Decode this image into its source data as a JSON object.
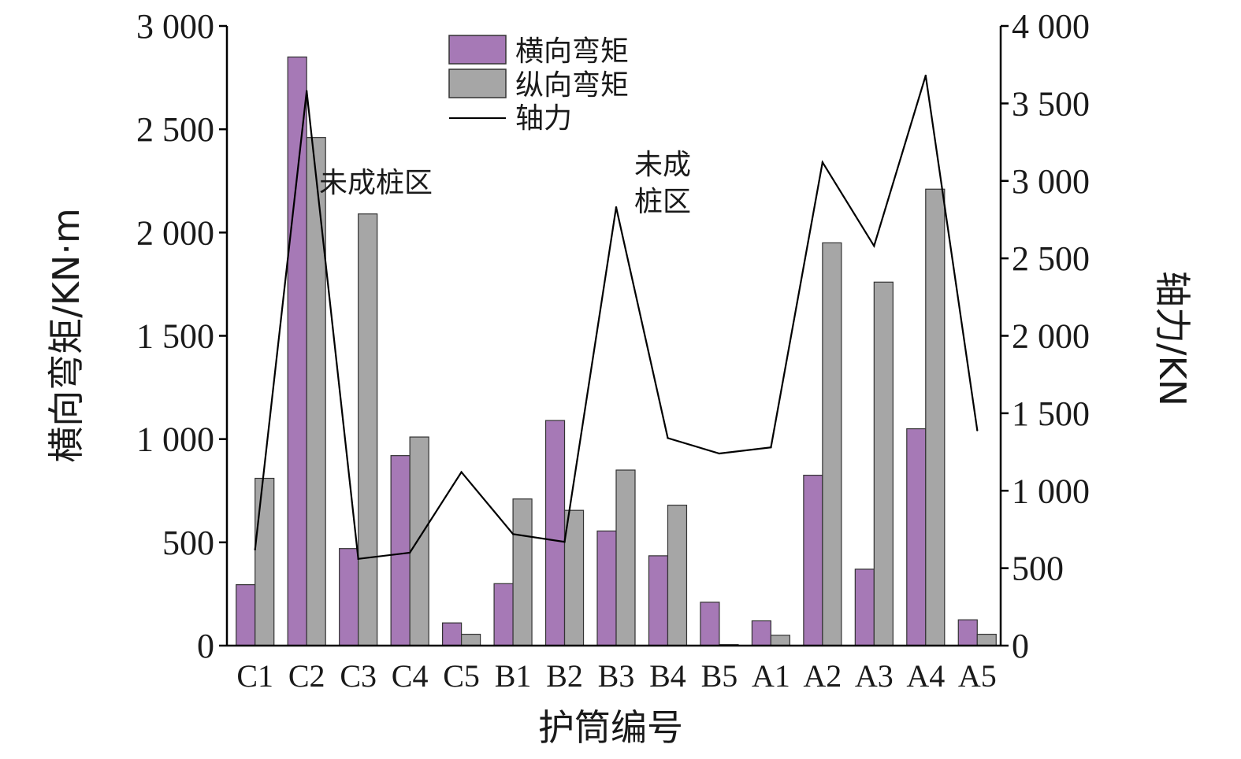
{
  "chart_data": {
    "type": "bar",
    "categories": [
      "C1",
      "C2",
      "C3",
      "C4",
      "C5",
      "B1",
      "B2",
      "B3",
      "B4",
      "B5",
      "A1",
      "A2",
      "A3",
      "A4",
      "A5"
    ],
    "series": [
      {
        "name": "横向弯矩",
        "kind": "bar",
        "axis": "left",
        "color": "#A679B6",
        "values": [
          295,
          2850,
          470,
          920,
          110,
          300,
          1090,
          555,
          435,
          210,
          120,
          825,
          370,
          1050,
          125
        ]
      },
      {
        "name": "纵向弯矩",
        "kind": "bar",
        "axis": "left",
        "color": "#A6A6A6",
        "values": [
          810,
          2460,
          2090,
          1010,
          55,
          710,
          655,
          850,
          680,
          5,
          50,
          1950,
          1760,
          2210,
          55
        ]
      },
      {
        "name": "轴力",
        "kind": "line",
        "axis": "right",
        "color": "#000000",
        "values": [
          620,
          3580,
          560,
          600,
          1120,
          720,
          670,
          2830,
          1340,
          1240,
          1280,
          3120,
          2580,
          3680,
          1390
        ]
      }
    ],
    "xlabel": "护筒编号",
    "ylabel": "横向弯矩/KN·m",
    "y2label": "轴力/KN",
    "ylim": [
      0,
      3000
    ],
    "y2lim": [
      0,
      4000
    ],
    "yticks": [
      0,
      500,
      1000,
      1500,
      2000,
      2500,
      3000
    ],
    "yticklabels": [
      "0",
      "500",
      "1 000",
      "1 500",
      "2 000",
      "2 500",
      "3 000"
    ],
    "y2ticks": [
      0,
      500,
      1000,
      1500,
      2000,
      2500,
      3000,
      3500,
      4000
    ],
    "y2ticklabels": [
      "0",
      "500",
      "1 000",
      "1 500",
      "2 000",
      "2 500",
      "3 000",
      "3 500",
      "4 000"
    ],
    "annotations": [
      {
        "lines": [
          "未成桩区"
        ],
        "near": "C3"
      },
      {
        "lines": [
          "未成",
          "桩区"
        ],
        "near": "B3-B4"
      }
    ],
    "legend": "top-center",
    "grid": false
  }
}
